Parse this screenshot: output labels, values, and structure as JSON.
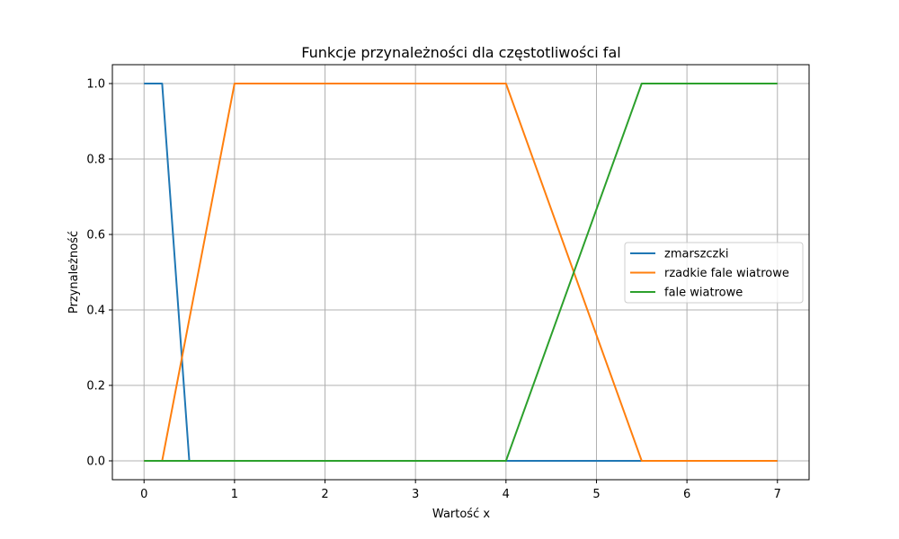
{
  "chart_data": {
    "type": "line",
    "title": "Funkcje przynależności dla częstotliwości fal",
    "xlabel": "Wartość x",
    "ylabel": "Przynależność",
    "xlim": [
      -0.35,
      7.35
    ],
    "ylim": [
      -0.05,
      1.05
    ],
    "xticks": [
      0,
      1,
      2,
      3,
      4,
      5,
      6,
      7
    ],
    "xtick_labels": [
      "0",
      "1",
      "2",
      "3",
      "4",
      "5",
      "6",
      "7"
    ],
    "yticks": [
      0.0,
      0.2,
      0.4,
      0.6,
      0.8,
      1.0
    ],
    "ytick_labels": [
      "0.0",
      "0.2",
      "0.4",
      "0.6",
      "0.8",
      "1.0"
    ],
    "grid": true,
    "legend_position": "center-right",
    "series": [
      {
        "name": "zmarszczki",
        "color": "#1f77b4",
        "x": [
          0,
          0.2,
          0.5,
          7
        ],
        "y": [
          1,
          1,
          0,
          0
        ]
      },
      {
        "name": "rzadkie fale wiatrowe",
        "color": "#ff7f0e",
        "x": [
          0,
          0.2,
          1,
          4,
          5.5,
          7
        ],
        "y": [
          0,
          0,
          1,
          1,
          0,
          0
        ]
      },
      {
        "name": "fale wiatrowe",
        "color": "#2ca02c",
        "x": [
          0,
          4,
          5.5,
          7
        ],
        "y": [
          0,
          0,
          1,
          1
        ]
      }
    ]
  }
}
